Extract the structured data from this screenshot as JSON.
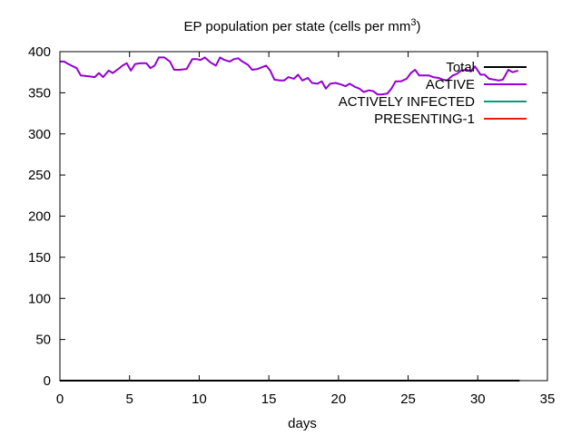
{
  "chart_data": {
    "type": "line",
    "title": "EP population per state (cells per mm",
    "title_superscript": "3",
    "title_suffix": ")",
    "xlabel": "days",
    "ylabel": "",
    "xlim": [
      0,
      35
    ],
    "ylim": [
      0,
      400
    ],
    "xticks": [
      0,
      5,
      10,
      15,
      20,
      25,
      30,
      35
    ],
    "yticks": [
      0,
      50,
      100,
      150,
      200,
      250,
      300,
      350,
      400
    ],
    "grid": false,
    "legend_position": "top-right",
    "series": [
      {
        "name": "Total",
        "color": "#000000",
        "x": [
          0,
          33
        ],
        "y": [
          0,
          0
        ]
      },
      {
        "name": "ACTIVE",
        "color": "#9400d3",
        "x": [
          0,
          0.3,
          0.6,
          1.2,
          1.5,
          2.1,
          2.5,
          2.8,
          3.1,
          3.5,
          3.8,
          4.2,
          4.5,
          4.8,
          5.1,
          5.4,
          5.8,
          6.2,
          6.5,
          6.8,
          7.1,
          7.5,
          7.9,
          8.2,
          8.6,
          9.1,
          9.5,
          9.8,
          10.1,
          10.4,
          10.8,
          11.2,
          11.5,
          11.8,
          12.2,
          12.5,
          12.8,
          13.1,
          13.5,
          13.8,
          14.2,
          14.8,
          15.1,
          15.4,
          15.8,
          16.1,
          16.4,
          16.8,
          17.1,
          17.4,
          17.8,
          18.1,
          18.5,
          18.8,
          19.1,
          19.4,
          19.8,
          20.2,
          20.5,
          20.8,
          21.2,
          21.5,
          21.8,
          22.2,
          22.5,
          22.8,
          23.1,
          23.5,
          23.8,
          24.1,
          24.5,
          24.9,
          25.2,
          25.5,
          25.8,
          26.2,
          26.5,
          26.8,
          27.2,
          27.5,
          27.8,
          28.2,
          28.5,
          28.8,
          29.2,
          29.5,
          29.8,
          30.2,
          30.5,
          30.8,
          31.2,
          31.5,
          31.8,
          32.2,
          32.5,
          32.9
        ],
        "y": [
          388,
          388,
          385,
          380,
          371,
          370,
          369,
          374,
          369,
          377,
          374,
          379,
          383,
          386,
          377,
          385,
          386,
          386,
          380,
          383,
          393,
          393,
          388,
          378,
          378,
          379,
          391,
          391,
          390,
          393,
          387,
          383,
          393,
          390,
          388,
          391,
          392,
          388,
          384,
          378,
          379,
          383,
          377,
          366,
          365,
          365,
          369,
          367,
          372,
          365,
          368,
          362,
          361,
          364,
          355,
          361,
          362,
          360,
          358,
          361,
          357,
          355,
          351,
          353,
          352,
          348,
          348,
          349,
          355,
          364,
          364,
          367,
          374,
          378,
          371,
          371,
          371,
          369,
          368,
          366,
          365,
          371,
          373,
          377,
          378,
          376,
          382,
          372,
          372,
          367,
          366,
          365,
          366,
          378,
          375,
          377
        ]
      },
      {
        "name": "ACTIVELY INFECTED",
        "color": "#009e73",
        "x": [
          0,
          33
        ],
        "y": [
          0,
          0
        ]
      },
      {
        "name": "PRESENTING-1",
        "color": "#e51e10",
        "x": [
          0,
          33
        ],
        "y": [
          0,
          0
        ]
      }
    ]
  }
}
